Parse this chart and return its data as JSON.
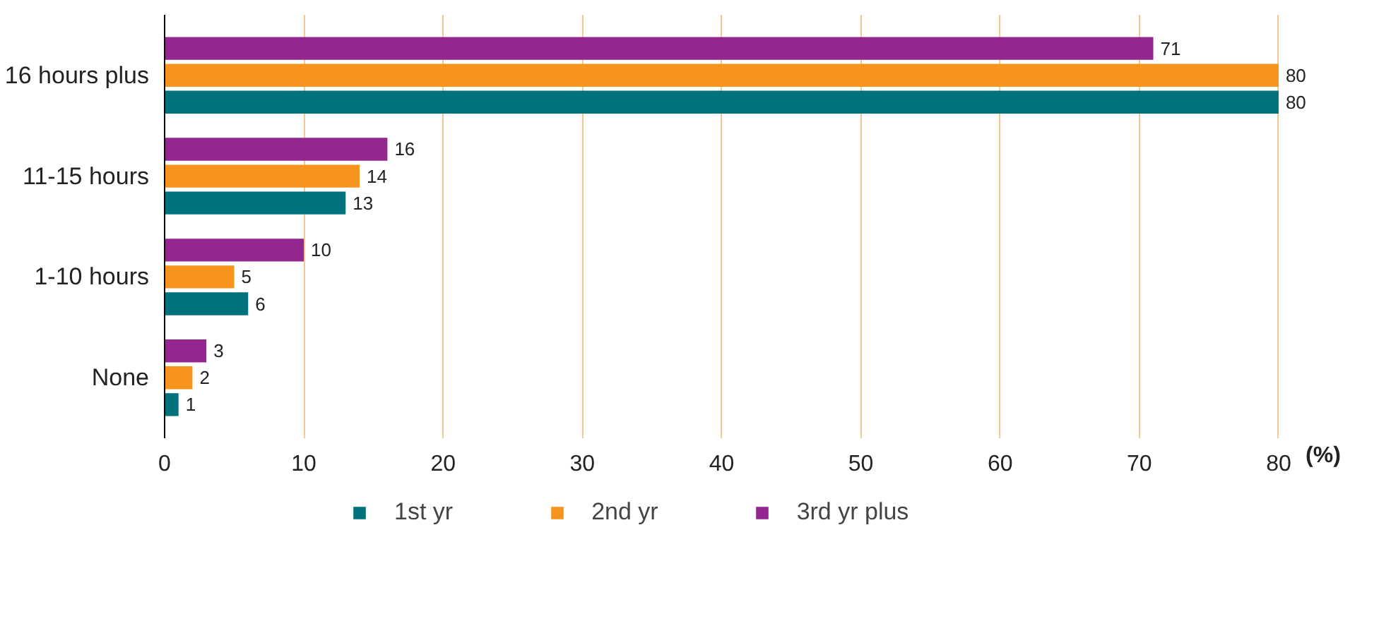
{
  "chart_data": {
    "type": "bar",
    "orientation": "horizontal",
    "xlabel": "(%)",
    "categories": [
      "16 hours plus",
      "11-15 hours",
      "1-10 hours",
      "None"
    ],
    "series": [
      {
        "name": "1st yr",
        "color": "#00727c",
        "values": [
          80,
          13,
          6,
          1
        ]
      },
      {
        "name": "2nd yr",
        "color": "#f7941d",
        "values": [
          80,
          14,
          5,
          2
        ]
      },
      {
        "name": "3rd yr plus",
        "color": "#93278f",
        "values": [
          71,
          16,
          10,
          3
        ]
      }
    ],
    "xlim": [
      0,
      80
    ],
    "xticks": [
      0,
      10,
      20,
      30,
      40,
      50,
      60,
      70,
      80
    ],
    "grid": "x",
    "legend": "bottom",
    "data_labels": true
  }
}
